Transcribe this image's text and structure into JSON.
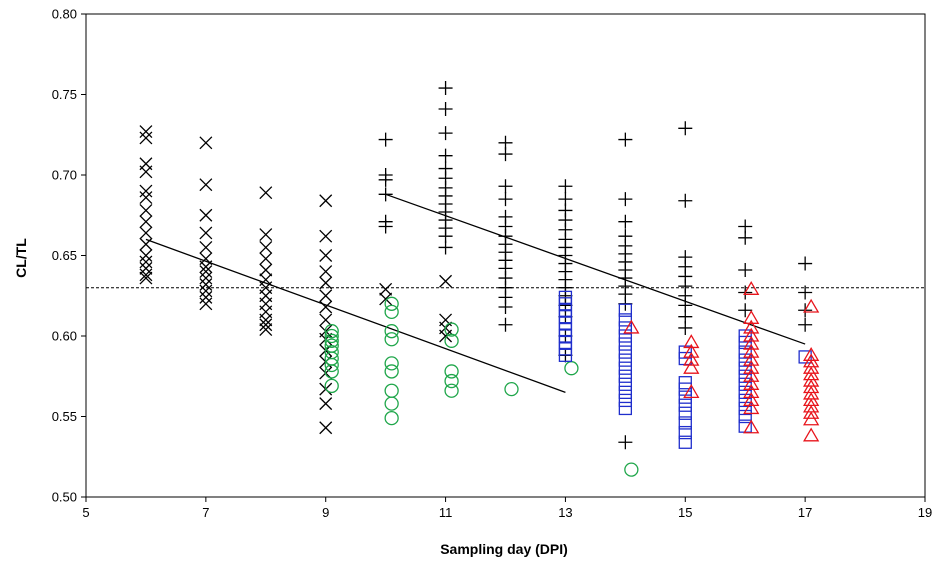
{
  "chart_data": {
    "type": "scatter",
    "title": "",
    "xlabel": "Sampling day (DPI)",
    "ylabel": "CL/TL",
    "xlim": [
      5,
      19
    ],
    "ylim": [
      0.5,
      0.8
    ],
    "xticks": [
      5,
      7,
      9,
      11,
      13,
      15,
      17,
      19
    ],
    "yticks": [
      0.5,
      0.55,
      0.6,
      0.65,
      0.7,
      0.75,
      0.8
    ],
    "ytick_labels": [
      "0.50",
      "0.55",
      "0.60",
      "0.65",
      "0.70",
      "0.75",
      "0.80"
    ],
    "grid": false,
    "legend": "none",
    "reference_line": {
      "y": 0.63,
      "style": "dashed",
      "color": "#000000"
    },
    "trend_lines": [
      {
        "x": [
          6,
          13
        ],
        "y": [
          0.66,
          0.565
        ],
        "color": "#000000"
      },
      {
        "x": [
          10,
          17
        ],
        "y": [
          0.688,
          0.595
        ],
        "color": "#000000"
      }
    ],
    "series": [
      {
        "marker": "x",
        "color": "#000000",
        "points": [
          [
            6,
            0.727
          ],
          [
            6,
            0.723
          ],
          [
            6,
            0.707
          ],
          [
            6,
            0.702
          ],
          [
            6,
            0.69
          ],
          [
            6,
            0.686
          ],
          [
            6,
            0.678
          ],
          [
            6,
            0.671
          ],
          [
            6,
            0.664
          ],
          [
            6,
            0.657
          ],
          [
            6,
            0.65
          ],
          [
            6,
            0.646
          ],
          [
            6,
            0.642
          ],
          [
            6,
            0.638
          ],
          [
            6,
            0.636
          ],
          [
            7,
            0.72
          ],
          [
            7,
            0.694
          ],
          [
            7,
            0.675
          ],
          [
            7,
            0.664
          ],
          [
            7,
            0.655
          ],
          [
            7,
            0.648
          ],
          [
            7,
            0.643
          ],
          [
            7,
            0.64
          ],
          [
            7,
            0.636
          ],
          [
            7,
            0.632
          ],
          [
            7,
            0.628
          ],
          [
            7,
            0.624
          ],
          [
            7,
            0.62
          ],
          [
            8,
            0.689
          ],
          [
            8,
            0.663
          ],
          [
            8,
            0.655
          ],
          [
            8,
            0.648
          ],
          [
            8,
            0.641
          ],
          [
            8,
            0.635
          ],
          [
            8,
            0.63
          ],
          [
            8,
            0.625
          ],
          [
            8,
            0.62
          ],
          [
            8,
            0.615
          ],
          [
            8,
            0.61
          ],
          [
            8,
            0.607
          ],
          [
            8,
            0.604
          ],
          [
            9,
            0.684
          ],
          [
            9,
            0.662
          ],
          [
            9,
            0.65
          ],
          [
            9,
            0.64
          ],
          [
            9,
            0.633
          ],
          [
            9,
            0.625
          ],
          [
            9,
            0.618
          ],
          [
            9,
            0.61
          ],
          [
            9,
            0.603
          ],
          [
            9,
            0.598
          ],
          [
            9,
            0.591
          ],
          [
            9,
            0.584
          ],
          [
            9,
            0.577
          ],
          [
            9,
            0.567
          ],
          [
            9,
            0.558
          ],
          [
            9,
            0.543
          ],
          [
            10,
            0.629
          ],
          [
            10,
            0.623
          ],
          [
            11,
            0.634
          ],
          [
            11,
            0.61
          ],
          [
            11,
            0.605
          ],
          [
            11,
            0.6
          ]
        ]
      },
      {
        "marker": "+",
        "color": "#000000",
        "points": [
          [
            10,
            0.722
          ],
          [
            10,
            0.7
          ],
          [
            10,
            0.697
          ],
          [
            10,
            0.688
          ],
          [
            10,
            0.671
          ],
          [
            10,
            0.668
          ],
          [
            11,
            0.754
          ],
          [
            11,
            0.741
          ],
          [
            11,
            0.726
          ],
          [
            11,
            0.712
          ],
          [
            11,
            0.704
          ],
          [
            11,
            0.698
          ],
          [
            11,
            0.692
          ],
          [
            11,
            0.687
          ],
          [
            11,
            0.682
          ],
          [
            11,
            0.677
          ],
          [
            11,
            0.672
          ],
          [
            11,
            0.667
          ],
          [
            11,
            0.662
          ],
          [
            11,
            0.655
          ],
          [
            12,
            0.72
          ],
          [
            12,
            0.713
          ],
          [
            12,
            0.693
          ],
          [
            12,
            0.685
          ],
          [
            12,
            0.674
          ],
          [
            12,
            0.668
          ],
          [
            12,
            0.662
          ],
          [
            12,
            0.657
          ],
          [
            12,
            0.652
          ],
          [
            12,
            0.647
          ],
          [
            12,
            0.642
          ],
          [
            12,
            0.636
          ],
          [
            12,
            0.63
          ],
          [
            12,
            0.624
          ],
          [
            12,
            0.618
          ],
          [
            12,
            0.607
          ],
          [
            13,
            0.693
          ],
          [
            13,
            0.685
          ],
          [
            13,
            0.678
          ],
          [
            13,
            0.672
          ],
          [
            13,
            0.666
          ],
          [
            13,
            0.66
          ],
          [
            13,
            0.655
          ],
          [
            13,
            0.65
          ],
          [
            13,
            0.645
          ],
          [
            13,
            0.64
          ],
          [
            13,
            0.635
          ],
          [
            13,
            0.63
          ],
          [
            13,
            0.625
          ],
          [
            13,
            0.619
          ],
          [
            13,
            0.612
          ],
          [
            13,
            0.6
          ],
          [
            13,
            0.588
          ],
          [
            14,
            0.722
          ],
          [
            14,
            0.685
          ],
          [
            14,
            0.671
          ],
          [
            14,
            0.662
          ],
          [
            14,
            0.656
          ],
          [
            14,
            0.651
          ],
          [
            14,
            0.646
          ],
          [
            14,
            0.641
          ],
          [
            14,
            0.636
          ],
          [
            14,
            0.631
          ],
          [
            14,
            0.626
          ],
          [
            14,
            0.62
          ],
          [
            14,
            0.534
          ],
          [
            15,
            0.729
          ],
          [
            15,
            0.684
          ],
          [
            15,
            0.649
          ],
          [
            15,
            0.643
          ],
          [
            15,
            0.637
          ],
          [
            15,
            0.631
          ],
          [
            15,
            0.625
          ],
          [
            15,
            0.619
          ],
          [
            15,
            0.612
          ],
          [
            15,
            0.605
          ],
          [
            16,
            0.668
          ],
          [
            16,
            0.661
          ],
          [
            16,
            0.641
          ],
          [
            16,
            0.627
          ],
          [
            16,
            0.616
          ],
          [
            17,
            0.645
          ],
          [
            17,
            0.627
          ],
          [
            17,
            0.616
          ],
          [
            17,
            0.607
          ]
        ]
      },
      {
        "marker": "circle",
        "color": "#1fa64a",
        "points": [
          [
            9,
            0.603
          ],
          [
            9,
            0.6
          ],
          [
            9,
            0.597
          ],
          [
            9,
            0.594
          ],
          [
            9,
            0.59
          ],
          [
            9,
            0.586
          ],
          [
            9,
            0.582
          ],
          [
            9,
            0.578
          ],
          [
            9,
            0.569
          ],
          [
            10,
            0.62
          ],
          [
            10,
            0.615
          ],
          [
            10,
            0.603
          ],
          [
            10,
            0.598
          ],
          [
            10,
            0.583
          ],
          [
            10,
            0.578
          ],
          [
            10,
            0.566
          ],
          [
            10,
            0.558
          ],
          [
            10,
            0.549
          ],
          [
            11,
            0.604
          ],
          [
            11,
            0.597
          ],
          [
            11,
            0.578
          ],
          [
            11,
            0.572
          ],
          [
            11,
            0.566
          ],
          [
            12,
            0.567
          ],
          [
            13,
            0.58
          ],
          [
            14,
            0.517
          ]
        ]
      },
      {
        "marker": "square",
        "color": "#1f2ecc",
        "points": [
          [
            13,
            0.624
          ],
          [
            13,
            0.62
          ],
          [
            13,
            0.616
          ],
          [
            13,
            0.612
          ],
          [
            13,
            0.608
          ],
          [
            13,
            0.604
          ],
          [
            13,
            0.6
          ],
          [
            13,
            0.596
          ],
          [
            13,
            0.592
          ],
          [
            13,
            0.588
          ],
          [
            14,
            0.616
          ],
          [
            14,
            0.61
          ],
          [
            14,
            0.605
          ],
          [
            14,
            0.6
          ],
          [
            14,
            0.595
          ],
          [
            14,
            0.59
          ],
          [
            14,
            0.585
          ],
          [
            14,
            0.58
          ],
          [
            14,
            0.575
          ],
          [
            14,
            0.57
          ],
          [
            14,
            0.565
          ],
          [
            14,
            0.56
          ],
          [
            14,
            0.555
          ],
          [
            15,
            0.59
          ],
          [
            15,
            0.586
          ],
          [
            15,
            0.571
          ],
          [
            15,
            0.567
          ],
          [
            15,
            0.562
          ],
          [
            15,
            0.557
          ],
          [
            15,
            0.552
          ],
          [
            15,
            0.546
          ],
          [
            15,
            0.54
          ],
          [
            15,
            0.534
          ],
          [
            16,
            0.6
          ],
          [
            16,
            0.596
          ],
          [
            16,
            0.59
          ],
          [
            16,
            0.585
          ],
          [
            16,
            0.58
          ],
          [
            16,
            0.575
          ],
          [
            16,
            0.57
          ],
          [
            16,
            0.565
          ],
          [
            16,
            0.56
          ],
          [
            16,
            0.555
          ],
          [
            16,
            0.55
          ],
          [
            16,
            0.544
          ],
          [
            17,
            0.587
          ]
        ]
      },
      {
        "marker": "triangle",
        "color": "#e8141b",
        "points": [
          [
            14,
            0.605
          ],
          [
            15,
            0.596
          ],
          [
            15,
            0.59
          ],
          [
            15,
            0.585
          ],
          [
            15,
            0.58
          ],
          [
            15,
            0.565
          ],
          [
            16,
            0.629
          ],
          [
            16,
            0.611
          ],
          [
            16,
            0.605
          ],
          [
            16,
            0.6
          ],
          [
            16,
            0.595
          ],
          [
            16,
            0.59
          ],
          [
            16,
            0.585
          ],
          [
            16,
            0.58
          ],
          [
            16,
            0.575
          ],
          [
            16,
            0.57
          ],
          [
            16,
            0.565
          ],
          [
            16,
            0.56
          ],
          [
            16,
            0.555
          ],
          [
            16,
            0.543
          ],
          [
            17,
            0.618
          ],
          [
            17,
            0.588
          ],
          [
            17,
            0.584
          ],
          [
            17,
            0.58
          ],
          [
            17,
            0.576
          ],
          [
            17,
            0.572
          ],
          [
            17,
            0.568
          ],
          [
            17,
            0.564
          ],
          [
            17,
            0.56
          ],
          [
            17,
            0.556
          ],
          [
            17,
            0.552
          ],
          [
            17,
            0.548
          ],
          [
            17,
            0.538
          ]
        ]
      }
    ]
  }
}
